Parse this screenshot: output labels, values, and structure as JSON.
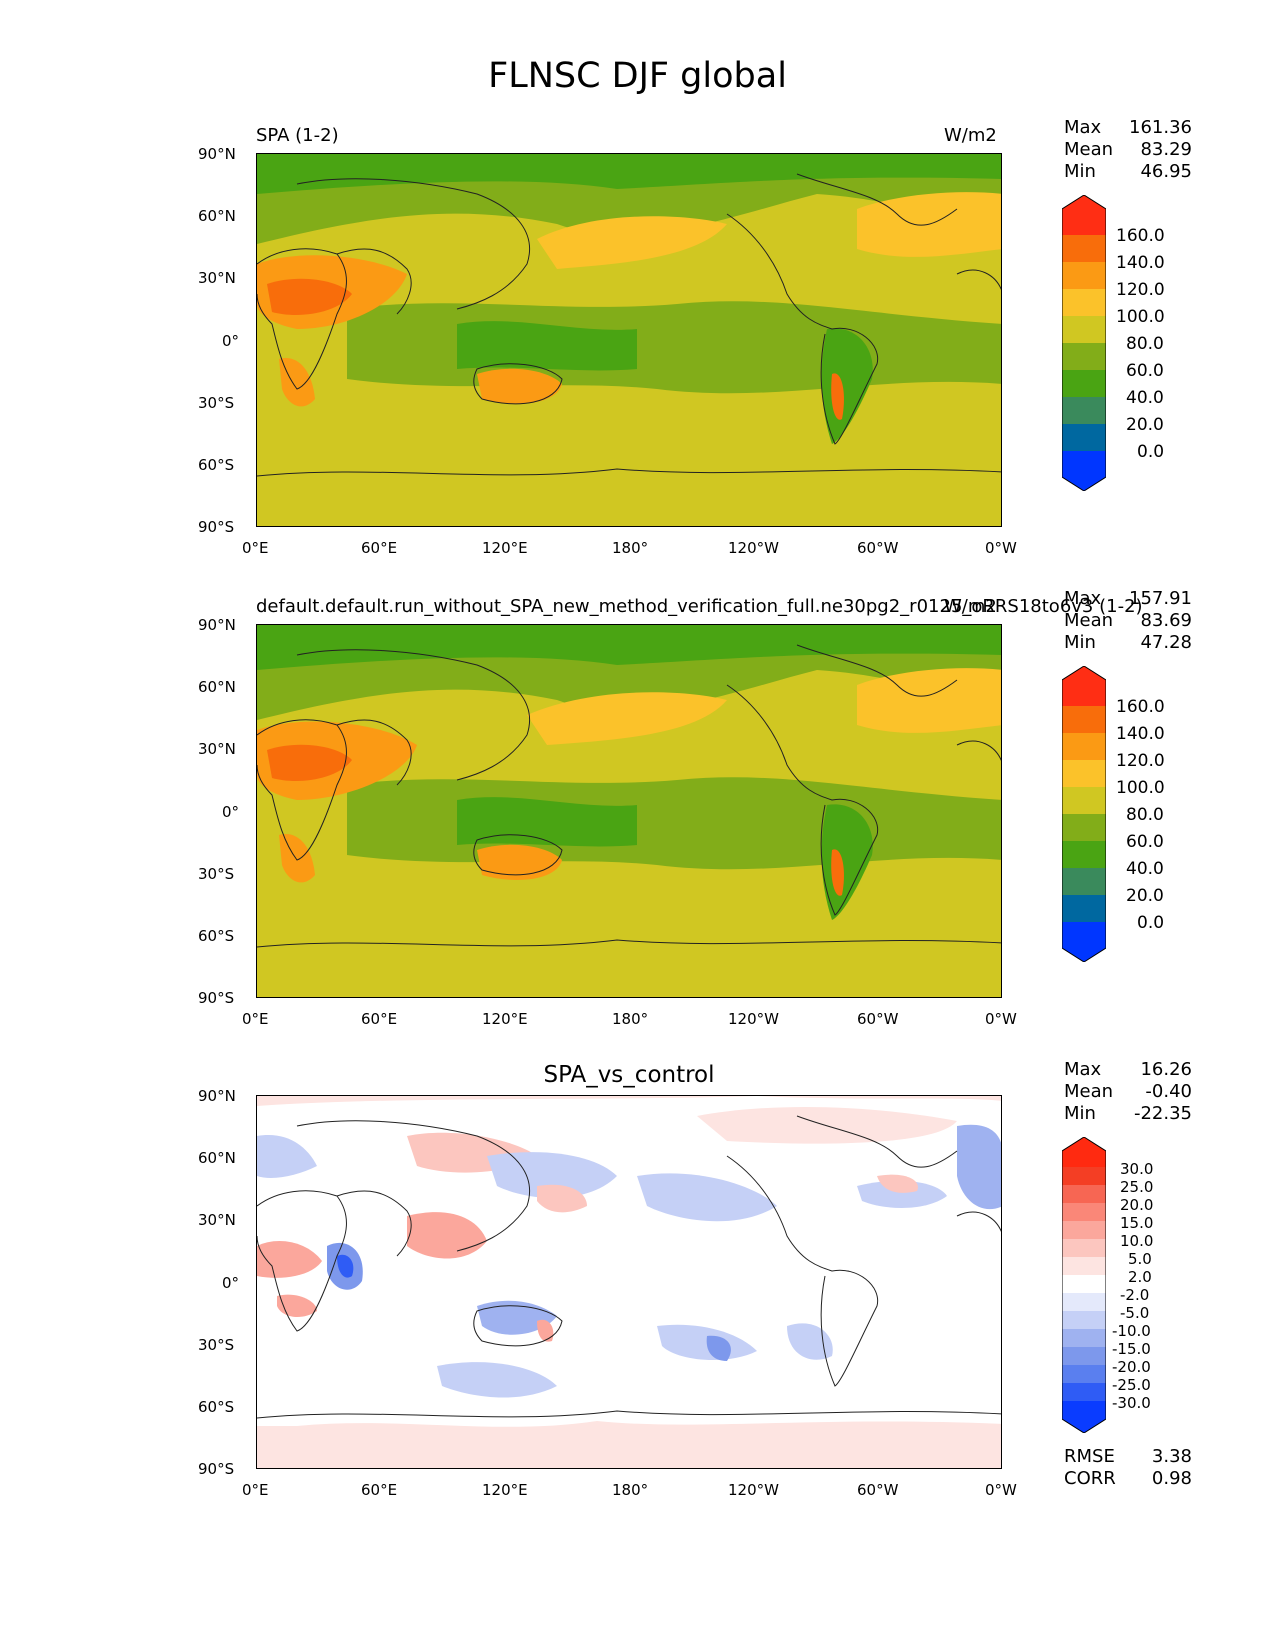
{
  "title": "FLNSC DJF global",
  "lat_ticks": [
    "90°N",
    "60°N",
    "30°N",
    "0°",
    "30°S",
    "60°S",
    "90°S"
  ],
  "lon_ticks": [
    "0°E",
    "60°E",
    "120°E",
    "180°",
    "120°W",
    "60°W",
    "0°W"
  ],
  "panel1": {
    "left_title": "SPA (1-2)",
    "units": "W/m2",
    "stats": {
      "max_label": "Max",
      "max": "161.36",
      "mean_label": "Mean",
      "mean": "83.29",
      "min_label": "Min",
      "min": "46.95"
    },
    "colorbar_labels": [
      "160.0",
      "140.0",
      "120.0",
      "100.0",
      "80.0",
      "60.0",
      "40.0",
      "20.0",
      "0.0"
    ]
  },
  "panel2": {
    "left_title": "default.default.run_without_SPA_new_method_verification_full.ne30pg2_r0125_oRRS18to6v3 (1-2)",
    "units": "W/m2",
    "stats": {
      "max_label": "Max",
      "max": "157.91",
      "mean_label": "Mean",
      "mean": "83.69",
      "min_label": "Min",
      "min": "47.28"
    },
    "colorbar_labels": [
      "160.0",
      "140.0",
      "120.0",
      "100.0",
      "80.0",
      "60.0",
      "40.0",
      "20.0",
      "0.0"
    ]
  },
  "panel3": {
    "center_title": "SPA_vs_control",
    "stats": {
      "max_label": "Max",
      "max": "16.26",
      "mean_label": "Mean",
      "mean": "-0.40",
      "min_label": "Min",
      "min": "-22.35"
    },
    "colorbar_labels": [
      "30.0",
      "25.0",
      "20.0",
      "15.0",
      "10.0",
      "5.0",
      "2.0",
      "-2.0",
      "-5.0",
      "-10.0",
      "-15.0",
      "-20.0",
      "-25.0",
      "-30.0"
    ],
    "rmse_label": "RMSE",
    "rmse": "3.38",
    "corr_label": "CORR",
    "corr": "0.98"
  },
  "colors": {
    "abs_levels": [
      "#0036ff",
      "#0068a0",
      "#3a8a5c",
      "#4aa413",
      "#82ad19",
      "#d0c722",
      "#fbc22a",
      "#fb9a14",
      "#f86d0b",
      "#ff2e14"
    ],
    "diff_levels": [
      "#0a3cff",
      "#2f5cf5",
      "#5a7fef",
      "#7d98ec",
      "#9fb2f0",
      "#c5d0f6",
      "#e4e9fb",
      "#ffffff",
      "#fde4e1",
      "#fcc6bf",
      "#fba79c",
      "#fa8778",
      "#f76653",
      "#f43e24",
      "#ff2a10"
    ],
    "background_abs": "#d0c722",
    "ocean_green": "#82ad19"
  }
}
